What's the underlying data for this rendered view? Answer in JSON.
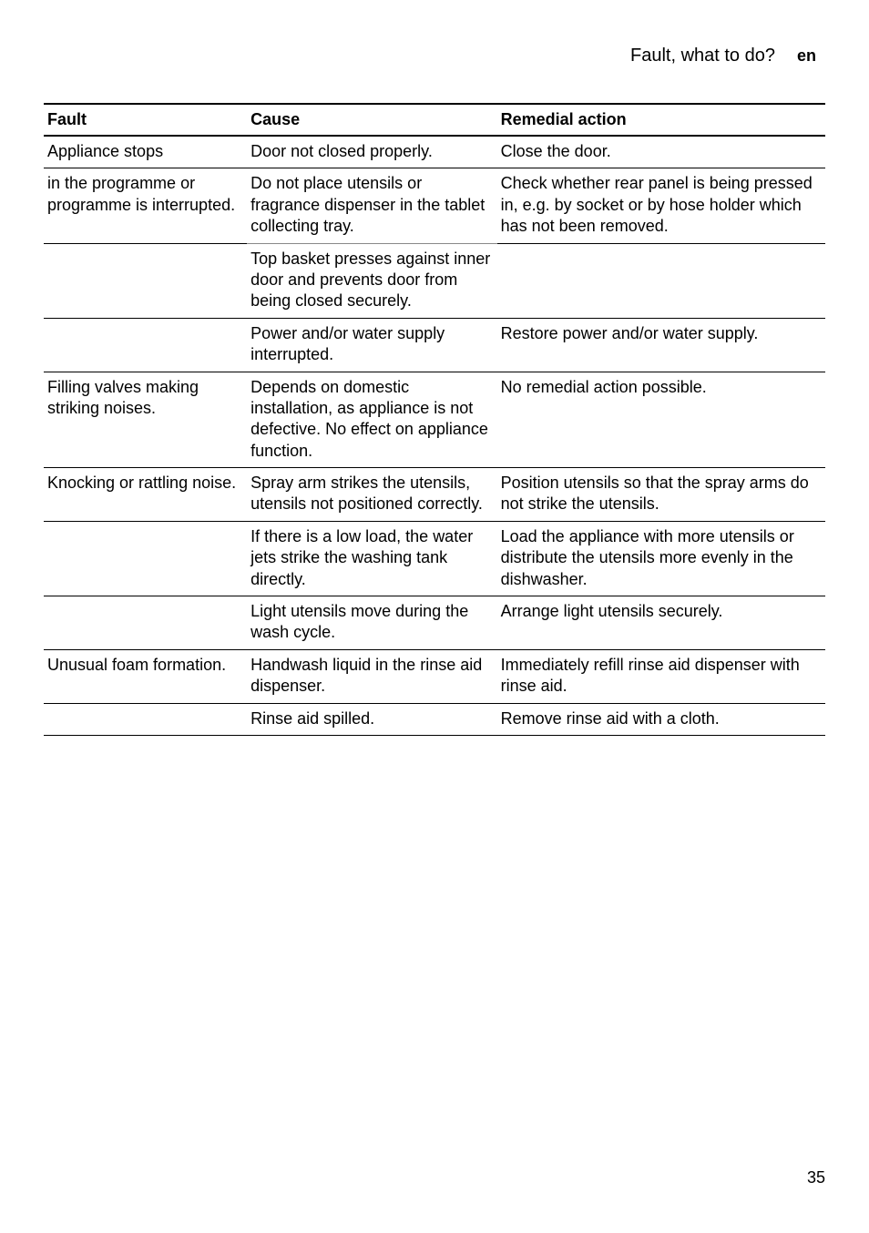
{
  "header": {
    "title": "Fault, what to do?",
    "lang": "en"
  },
  "table": {
    "headers": {
      "fault": "Fault",
      "cause": "Cause",
      "remedy": "Remedial action"
    },
    "rows": [
      {
        "fault": "Appliance stops",
        "cause": "Door not closed properly.",
        "remedy": "Close the door."
      },
      {
        "fault": "in the programme or programme is interrupted.",
        "cause": "Do not place utensils or fragrance dispenser in the tablet collecting tray.",
        "remedy": "Check whether rear panel is being pressed in, e.g. by socket or by hose holder which has not been removed."
      },
      {
        "fault": "",
        "cause": "Top basket presses against inner door and prevents door from being closed securely.",
        "remedy": ""
      },
      {
        "fault": "",
        "cause": "Power and/or water supply interrupted.",
        "remedy": "Restore power and/or water supply."
      },
      {
        "fault": "Filling valves making striking noises.",
        "cause": "Depends on domestic installation, as appliance is not defective. No effect on appliance function.",
        "remedy": "No remedial action possible."
      },
      {
        "fault": "Knocking or rattling noise.",
        "cause": "Spray arm strikes the utensils, utensils not positioned correctly.",
        "remedy": "Position utensils so that the spray arms do not strike the utensils."
      },
      {
        "fault": "",
        "cause": "If there is a low load, the water jets strike the washing tank directly.",
        "remedy": "Load the appliance with more utensils or distribute the utensils more evenly in the dishwasher."
      },
      {
        "fault": "",
        "cause": "Light utensils move during the wash cycle.",
        "remedy": "Arrange light utensils securely."
      },
      {
        "fault": "Unusual foam formation.",
        "cause": "Handwash liquid in the rinse aid dispenser.",
        "remedy": "Immediately refill rinse aid dispenser with rinse aid."
      },
      {
        "fault": "",
        "cause": "Rinse aid spilled.",
        "remedy": "Remove rinse aid with a cloth."
      }
    ]
  },
  "pageNumber": "35",
  "styles": {
    "textColor": "#000000",
    "backgroundColor": "#ffffff",
    "borderColor": "#000000",
    "fontSize": 18,
    "headerFontSize": 20
  }
}
